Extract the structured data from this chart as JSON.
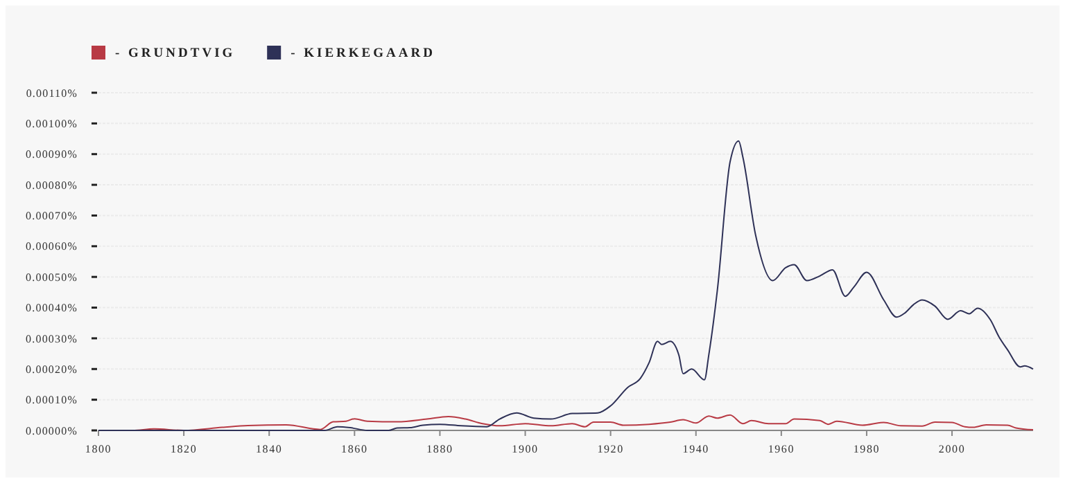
{
  "chart_data": {
    "type": "line",
    "legend": "top left",
    "grid": "y",
    "xlim": [
      1800,
      2019
    ],
    "xticks": [
      1800,
      1820,
      1840,
      1860,
      1880,
      1900,
      1920,
      1940,
      1960,
      1980,
      2000
    ],
    "ylim": [
      0,
      0.0011
    ],
    "yticks": [
      {
        "value": 0,
        "label": "0.00000%"
      },
      {
        "value": 0.0001,
        "label": "0.00010%"
      },
      {
        "value": 0.0002,
        "label": "0.00020%"
      },
      {
        "value": 0.0003,
        "label": "0.00030%"
      },
      {
        "value": 0.0004,
        "label": "0.00040%"
      },
      {
        "value": 0.0005,
        "label": "0.00050%"
      },
      {
        "value": 0.0006,
        "label": "0.00060%"
      },
      {
        "value": 0.0007,
        "label": "0.00070%"
      },
      {
        "value": 0.0008,
        "label": "0.00080%"
      },
      {
        "value": 0.0009,
        "label": "0.00090%"
      },
      {
        "value": 0.001,
        "label": "0.00100%"
      },
      {
        "value": 0.0011,
        "label": "0.00110%"
      }
    ],
    "series": [
      {
        "name": "- GRUNDTVIG",
        "color": "#b83a44",
        "x": [
          1800,
          1808,
          1813,
          1820,
          1829,
          1835,
          1844,
          1852,
          1855,
          1858,
          1860,
          1863,
          1870,
          1877,
          1882,
          1886,
          1890,
          1894,
          1900,
          1906,
          1911,
          1914,
          1916,
          1920,
          1923,
          1929,
          1934,
          1937,
          1940,
          1943,
          1945,
          1948,
          1951,
          1953,
          1957,
          1961,
          1963,
          1969,
          1971,
          1973,
          1979,
          1984,
          1988,
          1993,
          1996,
          2000,
          2003,
          2005,
          2008,
          2013,
          2015,
          2019
        ],
        "values": [
          0,
          0,
          5e-06,
          0,
          1e-05,
          1.6e-05,
          1.8e-05,
          3e-06,
          2.8e-05,
          3e-05,
          3.8e-05,
          3e-05,
          2.8e-05,
          3.7e-05,
          4.5e-05,
          3.7e-05,
          2.2e-05,
          1.5e-05,
          2.2e-05,
          1.5e-05,
          2.2e-05,
          1.2e-05,
          2.7e-05,
          2.7e-05,
          1.7e-05,
          2e-05,
          2.7e-05,
          3.5e-05,
          2.4e-05,
          4.7e-05,
          4e-05,
          5e-05,
          2.2e-05,
          3.2e-05,
          2.2e-05,
          2.2e-05,
          3.7e-05,
          3.2e-05,
          2e-05,
          3e-05,
          1.7e-05,
          2.6e-05,
          1.5e-05,
          1.4e-05,
          2.7e-05,
          2.6e-05,
          1.2e-05,
          1e-05,
          1.8e-05,
          1.7e-05,
          8e-06,
          2e-06
        ]
      },
      {
        "name": "- KIERKEGAARD",
        "color": "#2e3157",
        "x": [
          1800,
          1850,
          1853,
          1856,
          1859,
          1863,
          1868,
          1870,
          1873,
          1876,
          1880,
          1885,
          1891,
          1894,
          1898,
          1902,
          1906,
          1911,
          1917,
          1920,
          1924,
          1927,
          1929,
          1931,
          1932,
          1934,
          1936,
          1937,
          1939,
          1942,
          1943,
          1945,
          1948,
          1950,
          1951,
          1954,
          1958,
          1961,
          1963,
          1966,
          1969,
          1972,
          1975,
          1977,
          1980,
          1984,
          1987,
          1989,
          1991,
          1993,
          1996,
          1999,
          2002,
          2004,
          2006,
          2009,
          2011,
          2013,
          2016,
          2017,
          2019
        ],
        "values": [
          0,
          0,
          0,
          1.2e-05,
          9e-06,
          0,
          0,
          8e-06,
          9e-06,
          1.7e-05,
          2e-05,
          1.5e-05,
          1.2e-05,
          3.7e-05,
          5.7e-05,
          4e-05,
          3.7e-05,
          5.5e-05,
          5.7e-05,
          8e-05,
          0.00014,
          0.00017,
          0.00022,
          0.00029,
          0.00028,
          0.00029,
          0.000245,
          0.000185,
          0.0002,
          0.000165,
          0.000245,
          0.000455,
          0.000875,
          0.000943,
          0.00089,
          0.000635,
          0.000488,
          0.00053,
          0.00054,
          0.000488,
          0.000503,
          0.000523,
          0.000437,
          0.000467,
          0.000515,
          0.000425,
          0.000369,
          0.000383,
          0.00041,
          0.000425,
          0.000405,
          0.000362,
          0.00039,
          0.00038,
          0.000398,
          0.00036,
          0.000305,
          0.000263,
          0.000207,
          0.00021,
          0.0002
        ]
      }
    ]
  }
}
